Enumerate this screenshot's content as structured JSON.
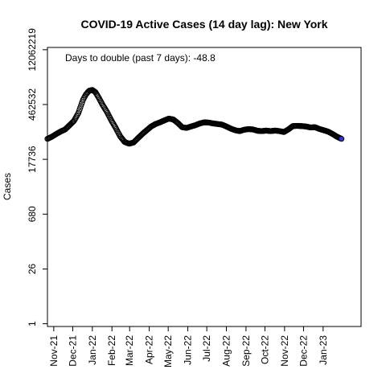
{
  "chart_data": {
    "type": "scatter",
    "title": "COVID-19 Active Cases (14 day lag): New York",
    "annotation": "Days to double (past 7 days): -48.8",
    "xlabel": "",
    "ylabel": "Cases",
    "y_scale": "log",
    "ylim": [
      0.85,
      13800000
    ],
    "xlim": [
      "2021-10-22",
      "2023-03-02"
    ],
    "grid": false,
    "legend": "none",
    "point_color": "#000000",
    "last_point_color": "#3333cc",
    "y_ticks": [
      {
        "value": 1,
        "label": "1"
      },
      {
        "value": 26,
        "label": "26"
      },
      {
        "value": 680,
        "label": "680"
      },
      {
        "value": 17736,
        "label": "17736"
      },
      {
        "value": 462532,
        "label": "462532"
      },
      {
        "value": 12062219,
        "label": "12062219"
      }
    ],
    "x_ticks": [
      {
        "date": "2021-11-01",
        "label": "Nov-21"
      },
      {
        "date": "2021-12-01",
        "label": "Dec-21"
      },
      {
        "date": "2022-01-01",
        "label": "Jan-22"
      },
      {
        "date": "2022-02-01",
        "label": "Feb-22"
      },
      {
        "date": "2022-03-01",
        "label": "Mar-22"
      },
      {
        "date": "2022-04-01",
        "label": "Apr-22"
      },
      {
        "date": "2022-05-01",
        "label": "May-22"
      },
      {
        "date": "2022-06-01",
        "label": "Jun-22"
      },
      {
        "date": "2022-07-01",
        "label": "Jul-22"
      },
      {
        "date": "2022-08-01",
        "label": "Aug-22"
      },
      {
        "date": "2022-09-01",
        "label": "Sep-22"
      },
      {
        "date": "2022-10-01",
        "label": "Oct-22"
      },
      {
        "date": "2022-11-01",
        "label": "Nov-22"
      },
      {
        "date": "2022-12-01",
        "label": "Dec-22"
      },
      {
        "date": "2023-01-01",
        "label": "Jan-23"
      }
    ],
    "series": [
      {
        "x": [
          "2021-10-22",
          "2021-10-29",
          "2021-11-05",
          "2021-11-12",
          "2021-11-19",
          "2021-11-26",
          "2021-12-03",
          "2021-12-10",
          "2021-12-17",
          "2021-12-22",
          "2021-12-27",
          "2022-01-01",
          "2022-01-06",
          "2022-01-11",
          "2022-01-17",
          "2022-01-24",
          "2022-01-31",
          "2022-02-07",
          "2022-02-14",
          "2022-02-21",
          "2022-02-28",
          "2022-03-07",
          "2022-03-14",
          "2022-03-21",
          "2022-03-28",
          "2022-04-04",
          "2022-04-11",
          "2022-04-18",
          "2022-04-25",
          "2022-05-02",
          "2022-05-09",
          "2022-05-16",
          "2022-05-23",
          "2022-05-30",
          "2022-06-06",
          "2022-06-13",
          "2022-06-20",
          "2022-06-27",
          "2022-07-04",
          "2022-07-11",
          "2022-07-18",
          "2022-07-25",
          "2022-08-01",
          "2022-08-08",
          "2022-08-15",
          "2022-08-22",
          "2022-08-29",
          "2022-09-05",
          "2022-09-12",
          "2022-09-19",
          "2022-09-26",
          "2022-10-03",
          "2022-10-10",
          "2022-10-17",
          "2022-10-24",
          "2022-10-31",
          "2022-11-07",
          "2022-11-14",
          "2022-11-21",
          "2022-11-28",
          "2022-12-05",
          "2022-12-12",
          "2022-12-19",
          "2022-12-26",
          "2023-01-02",
          "2023-01-09",
          "2023-01-16",
          "2023-01-23",
          "2023-01-30"
        ],
        "y": [
          60000,
          68000,
          80000,
          93000,
          105000,
          135000,
          175000,
          280000,
          600000,
          850000,
          1050000,
          1100000,
          960000,
          700000,
          460000,
          300000,
          180000,
          115000,
          70000,
          50000,
          45000,
          48000,
          62000,
          80000,
          100000,
          125000,
          145000,
          160000,
          180000,
          200000,
          190000,
          155000,
          120000,
          115000,
          125000,
          135000,
          150000,
          160000,
          158000,
          150000,
          145000,
          140000,
          125000,
          110000,
          100000,
          95000,
          103000,
          107000,
          105000,
          97000,
          95000,
          98000,
          95000,
          98000,
          95000,
          90000,
          105000,
          128000,
          130000,
          128000,
          125000,
          118000,
          120000,
          108000,
          100000,
          92000,
          80000,
          68000,
          60000
        ]
      }
    ]
  }
}
